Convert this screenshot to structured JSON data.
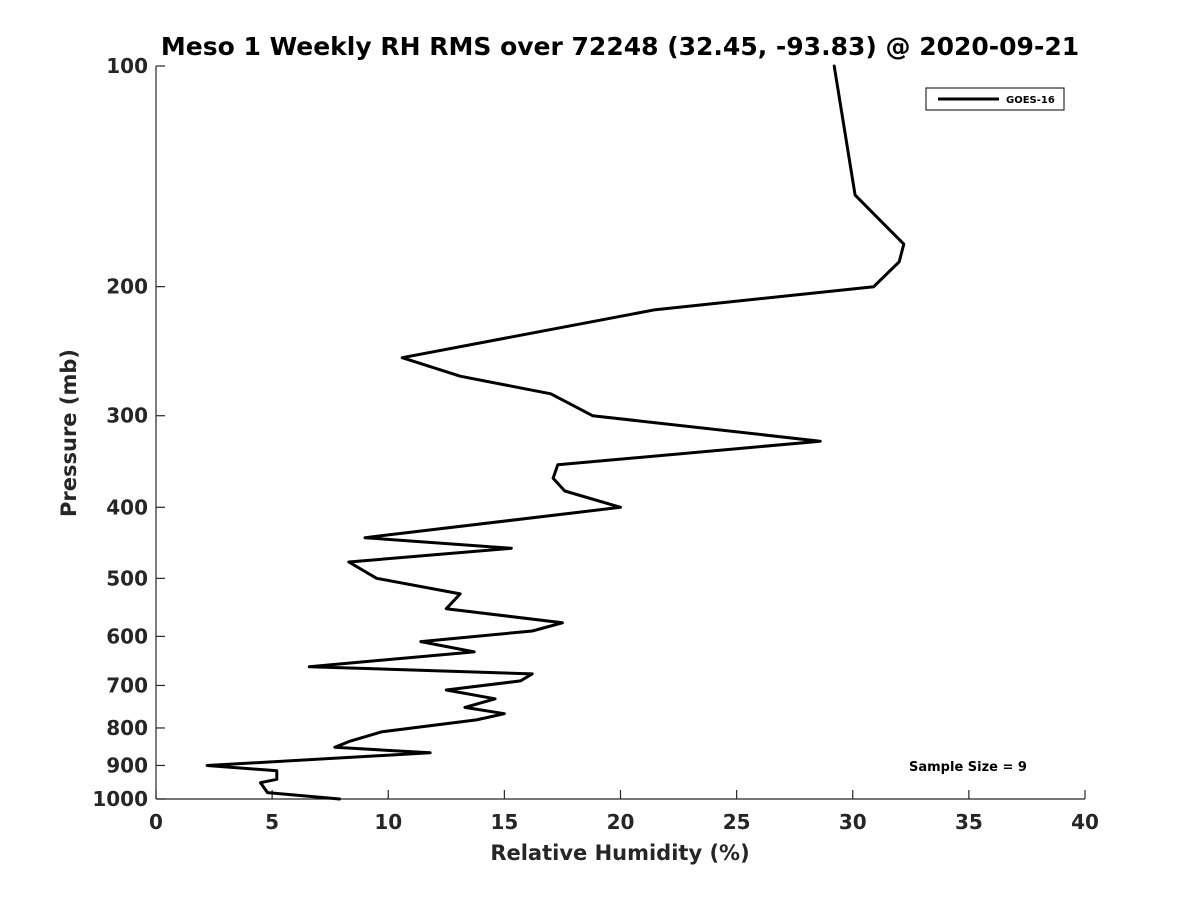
{
  "chart_data": {
    "type": "line",
    "title": "Meso 1 Weekly RH RMS over 72248 (32.45, -93.83) @ 2020-09-21",
    "xlabel": "Relative Humidity (%)",
    "ylabel": "Pressure (mb)",
    "xlim": [
      0,
      40
    ],
    "ylim": [
      100,
      1000
    ],
    "y_scale": "log",
    "y_reversed": true,
    "xticks": [
      "0",
      "5",
      "10",
      "15",
      "20",
      "25",
      "30",
      "35",
      "40"
    ],
    "yticks": [
      "100",
      "200",
      "300",
      "400",
      "500",
      "600",
      "700",
      "800",
      "900",
      "1000"
    ],
    "grid": false,
    "legend_position": "top-right",
    "series": [
      {
        "name": "GOES-16",
        "color": "#000000",
        "points": [
          [
            29.2,
            100
          ],
          [
            30.1,
            150
          ],
          [
            32.2,
            175
          ],
          [
            32.0,
            185
          ],
          [
            30.9,
            200
          ],
          [
            21.5,
            215
          ],
          [
            10.6,
            250
          ],
          [
            13.1,
            265
          ],
          [
            17.0,
            280
          ],
          [
            18.8,
            300
          ],
          [
            28.6,
            325
          ],
          [
            17.3,
            350
          ],
          [
            17.1,
            365
          ],
          [
            17.6,
            380
          ],
          [
            20.0,
            400
          ],
          [
            9.0,
            440
          ],
          [
            15.3,
            455
          ],
          [
            8.3,
            475
          ],
          [
            9.5,
            500
          ],
          [
            13.1,
            525
          ],
          [
            12.5,
            550
          ],
          [
            17.5,
            575
          ],
          [
            16.2,
            590
          ],
          [
            11.4,
            610
          ],
          [
            13.7,
            630
          ],
          [
            6.6,
            660
          ],
          [
            16.2,
            675
          ],
          [
            15.7,
            690
          ],
          [
            12.5,
            710
          ],
          [
            14.6,
            730
          ],
          [
            13.3,
            750
          ],
          [
            15.0,
            765
          ],
          [
            13.8,
            780
          ],
          [
            9.7,
            810
          ],
          [
            8.3,
            835
          ],
          [
            7.7,
            850
          ],
          [
            11.8,
            865
          ],
          [
            2.2,
            900
          ],
          [
            5.2,
            915
          ],
          [
            5.2,
            940
          ],
          [
            4.5,
            950
          ],
          [
            4.8,
            980
          ],
          [
            7.9,
            1000
          ]
        ]
      }
    ],
    "annotations": [
      "Sample Size = 9"
    ]
  }
}
